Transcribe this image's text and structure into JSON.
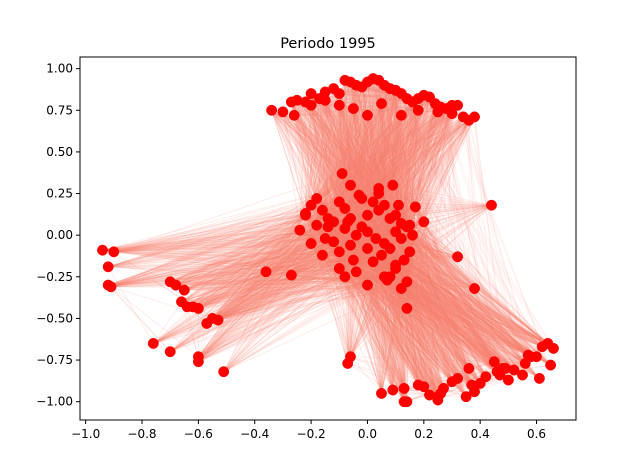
{
  "chart_data": {
    "type": "scatter",
    "title": "Periodo 1995",
    "xlabel": "",
    "ylabel": "",
    "xlim": [
      -1.02,
      0.74
    ],
    "ylim": [
      -1.11,
      1.07
    ],
    "xticks": [
      -1.0,
      -0.8,
      -0.6,
      -0.4,
      -0.2,
      0.0,
      0.2,
      0.4,
      0.6
    ],
    "xtick_labels": [
      "−1.0",
      "−0.8",
      "−0.6",
      "−0.4",
      "−0.2",
      "0.0",
      "0.2",
      "0.4",
      "0.6"
    ],
    "yticks": [
      -1.0,
      -0.75,
      -0.5,
      -0.25,
      0.0,
      0.25,
      0.5,
      0.75,
      1.0
    ],
    "ytick_labels": [
      "−1.00",
      "−0.75",
      "−0.50",
      "−0.25",
      "0.00",
      "0.25",
      "0.50",
      "0.75",
      "1.00"
    ],
    "grid": false,
    "node_color": "#ff0000",
    "edge_color": "#fa8072",
    "clusters": [
      {
        "x": [
          -0.34,
          -0.3,
          -0.27,
          -0.25,
          -0.22,
          -0.2,
          -0.17,
          -0.15,
          -0.12,
          -0.1,
          -0.08,
          -0.06,
          -0.04,
          -0.02,
          0.0,
          0.02,
          0.04,
          0.06,
          0.08,
          0.1,
          0.12,
          0.14,
          0.16,
          0.18,
          0.2,
          0.22,
          0.24,
          0.26,
          0.28,
          0.3,
          0.32,
          0.34,
          0.36,
          0.38,
          -0.26,
          -0.2,
          -0.1,
          -0.05,
          0.05,
          0.12,
          0.18,
          0.25,
          0.3,
          -0.15,
          0.0,
          0.1
        ],
        "y": [
          0.75,
          0.74,
          0.8,
          0.81,
          0.8,
          0.85,
          0.82,
          0.86,
          0.88,
          0.85,
          0.93,
          0.92,
          0.9,
          0.89,
          0.92,
          0.94,
          0.93,
          0.9,
          0.88,
          0.87,
          0.85,
          0.82,
          0.8,
          0.82,
          0.84,
          0.83,
          0.79,
          0.77,
          0.76,
          0.78,
          0.78,
          0.71,
          0.69,
          0.71,
          0.72,
          0.78,
          0.78,
          0.76,
          0.79,
          0.72,
          0.75,
          0.74,
          0.73,
          0.81,
          0.72,
          0.87
        ]
      },
      {
        "x": [
          -0.24,
          -0.22,
          -0.2,
          -0.18,
          -0.16,
          -0.14,
          -0.12,
          -0.1,
          -0.08,
          -0.06,
          -0.04,
          -0.02,
          0.0,
          0.02,
          0.04,
          0.06,
          0.08,
          0.1,
          0.12,
          0.14,
          0.16,
          -0.2,
          -0.15,
          -0.1,
          -0.05,
          0.0,
          0.05,
          0.1,
          0.15,
          -0.18,
          -0.12,
          -0.06,
          0.0,
          0.06,
          0.12,
          -0.16,
          -0.08,
          0.02,
          0.1,
          -0.14,
          -0.04,
          0.06,
          0.14,
          -0.1,
          0.0,
          0.08,
          -0.06,
          0.04,
          0.12,
          -0.02,
          0.1,
          0.08,
          0.04,
          -0.08,
          0.15,
          0.2,
          -0.22,
          -0.03,
          0.03,
          0.11,
          0.13,
          -0.07,
          0.07,
          -0.09,
          0.09,
          0.17
        ],
        "y": [
          0.03,
          0.12,
          0.18,
          0.22,
          0.15,
          0.05,
          0.08,
          0.2,
          0.16,
          0.1,
          0.0,
          0.05,
          0.12,
          0.2,
          0.25,
          0.18,
          0.1,
          0.02,
          -0.02,
          0.05,
          0.0,
          -0.05,
          -0.02,
          -0.1,
          -0.15,
          -0.08,
          -0.12,
          -0.18,
          -0.1,
          0.06,
          -0.04,
          -0.06,
          0.02,
          -0.05,
          0.07,
          -0.12,
          0.04,
          -0.16,
          -0.2,
          0.1,
          -0.22,
          -0.25,
          -0.28,
          -0.2,
          -0.3,
          -0.25,
          0.3,
          0.28,
          -0.32,
          0.22,
          0.12,
          -0.08,
          0.15,
          -0.25,
          0.06,
          0.08,
          0.13,
          0.24,
          -0.02,
          0.18,
          -0.15,
          0.08,
          -0.27,
          0.37,
          0.3,
          0.17
        ]
      },
      {
        "x": [
          -0.94,
          -0.92,
          -0.9,
          -0.91,
          -0.92,
          -0.7,
          -0.66,
          -0.64,
          -0.62,
          -0.6,
          -0.57,
          -0.55,
          -0.53,
          -0.76,
          -0.7,
          -0.6,
          -0.6,
          -0.51,
          -0.36,
          -0.27,
          -0.68,
          -0.65
        ],
        "y": [
          -0.09,
          -0.19,
          -0.1,
          -0.31,
          -0.3,
          -0.28,
          -0.4,
          -0.43,
          -0.43,
          -0.44,
          -0.53,
          -0.5,
          -0.51,
          -0.65,
          -0.7,
          -0.73,
          -0.76,
          -0.82,
          -0.22,
          -0.24,
          -0.3,
          -0.33
        ]
      },
      {
        "x": [
          -0.06,
          -0.07,
          0.05,
          0.09,
          0.13,
          0.14,
          0.18,
          0.2,
          0.22,
          0.25,
          0.26,
          0.27,
          0.3,
          0.32,
          0.35,
          0.36,
          0.37,
          0.38,
          0.4,
          0.42,
          0.45,
          0.46,
          0.47,
          0.49,
          0.5,
          0.52,
          0.55,
          0.57,
          0.6,
          0.61,
          0.62,
          0.64,
          0.65,
          0.66,
          0.14,
          0.13,
          0.25,
          0.48,
          0.56,
          0.58
        ],
        "y": [
          -0.73,
          -0.77,
          -0.95,
          -0.93,
          -0.92,
          -1.0,
          -0.9,
          -0.91,
          -0.96,
          -0.99,
          -0.95,
          -0.92,
          -0.88,
          -0.86,
          -0.97,
          -0.8,
          -0.9,
          -0.94,
          -0.89,
          -0.85,
          -0.76,
          -0.82,
          -0.84,
          -0.8,
          -0.87,
          -0.81,
          -0.84,
          -0.72,
          -0.73,
          -0.86,
          -0.67,
          -0.65,
          -0.78,
          -0.68,
          -0.44,
          -1.0,
          -0.97,
          -0.8,
          -0.77,
          -0.73
        ]
      },
      {
        "x": [
          0.44,
          0.38,
          0.32
        ],
        "y": [
          0.18,
          -0.32,
          -0.13
        ]
      }
    ]
  }
}
